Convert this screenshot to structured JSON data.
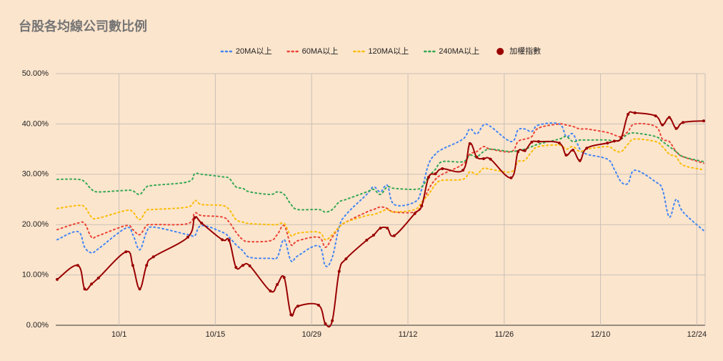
{
  "chart_data": {
    "type": "line",
    "title": "台股各均線公司數比例",
    "legend": "top",
    "grid": true,
    "x": [
      "9/22",
      "9/25",
      "9/26",
      "9/27",
      "9/28",
      "10/2",
      "10/3",
      "10/4",
      "10/5",
      "10/6",
      "10/11",
      "10/12",
      "10/13",
      "10/16",
      "10/17",
      "10/18",
      "10/19",
      "10/20",
      "10/23",
      "10/24",
      "10/25",
      "10/26",
      "10/27",
      "10/30",
      "10/31",
      "11/1",
      "11/2",
      "11/3",
      "11/6",
      "11/7",
      "11/8",
      "11/9",
      "11/10",
      "11/13",
      "11/14",
      "11/15",
      "11/16",
      "11/17",
      "11/20",
      "11/21",
      "11/22",
      "11/23",
      "11/24",
      "11/27",
      "11/28",
      "11/29",
      "11/30",
      "12/1",
      "12/4",
      "12/5",
      "12/6",
      "12/7",
      "12/8",
      "12/11",
      "12/12",
      "12/13",
      "12/14",
      "12/15",
      "12/18",
      "12/19",
      "12/20",
      "12/21",
      "12/22",
      "12/25"
    ],
    "xlim": [
      "9/22",
      "12/25"
    ],
    "xticks": [
      "10/1",
      "10/15",
      "10/29",
      "11/12",
      "11/26",
      "12/10",
      "12/24"
    ],
    "ylim": [
      0,
      50
    ],
    "yticks": [
      {
        "value": 0,
        "label": "0.00%"
      },
      {
        "value": 10,
        "label": "10.00%"
      },
      {
        "value": 20,
        "label": "20.00%"
      },
      {
        "value": 30,
        "label": "30.00%"
      },
      {
        "value": 40,
        "label": "40.00%"
      },
      {
        "value": 50,
        "label": "50.00%"
      }
    ],
    "series": [
      {
        "name": "20MA以上",
        "color": "#4285f4",
        "line_style": "dotted",
        "values": [
          17.0,
          18.6,
          15.5,
          14.4,
          15.2,
          19.3,
          18.0,
          15.0,
          18.5,
          19.5,
          18.0,
          17.8,
          19.8,
          18.5,
          17.5,
          16.0,
          14.8,
          13.5,
          13.3,
          13.5,
          17.0,
          12.8,
          13.8,
          15.8,
          11.8,
          13.5,
          19.5,
          22.0,
          26.0,
          27.5,
          26.5,
          27.8,
          24.0,
          24.5,
          27.0,
          32.0,
          34.0,
          35.0,
          37.0,
          39.0,
          38.0,
          39.8,
          39.5,
          36.5,
          38.8,
          39.0,
          38.5,
          39.8,
          40.0,
          37.5,
          38.0,
          35.0,
          34.0,
          33.0,
          31.0,
          28.5,
          28.2,
          30.8,
          28.5,
          27.0,
          21.5,
          25.0,
          22.5,
          18.8
        ]
      },
      {
        "name": "60MA以上",
        "color": "#ea4335",
        "line_style": "dotted",
        "values": [
          19.0,
          20.3,
          20.2,
          17.5,
          17.8,
          19.8,
          19.0,
          18.0,
          19.8,
          20.0,
          20.2,
          22.3,
          21.8,
          21.5,
          20.5,
          18.5,
          17.0,
          16.6,
          16.8,
          18.0,
          19.8,
          16.0,
          16.8,
          17.5,
          15.5,
          17.5,
          19.5,
          20.5,
          22.5,
          23.0,
          23.5,
          23.2,
          22.5,
          22.5,
          24.0,
          27.0,
          29.0,
          30.0,
          32.0,
          34.0,
          34.5,
          35.5,
          35.0,
          34.5,
          36.5,
          37.0,
          37.5,
          39.2,
          40.0,
          39.8,
          39.5,
          39.0,
          39.0,
          38.3,
          37.8,
          37.5,
          38.5,
          40.0,
          39.5,
          37.0,
          36.5,
          34.5,
          33.5,
          32.2
        ]
      },
      {
        "name": "120MA以上",
        "color": "#fbbc04",
        "line_style": "dotted",
        "values": [
          23.2,
          23.8,
          23.5,
          21.5,
          21.3,
          22.8,
          22.5,
          21.0,
          22.8,
          23.0,
          23.5,
          24.8,
          24.0,
          23.8,
          23.0,
          21.0,
          20.5,
          20.2,
          20.0,
          20.0,
          20.2,
          17.8,
          18.3,
          18.5,
          17.0,
          18.0,
          19.5,
          20.5,
          21.8,
          22.0,
          22.5,
          23.0,
          22.5,
          23.0,
          24.5,
          26.0,
          28.0,
          28.8,
          29.0,
          30.5,
          30.0,
          31.2,
          31.0,
          30.5,
          32.5,
          32.8,
          34.5,
          35.5,
          35.8,
          35.0,
          35.5,
          34.5,
          35.0,
          35.5,
          34.8,
          34.5,
          36.0,
          37.0,
          36.5,
          35.5,
          34.0,
          33.5,
          31.8,
          30.9
        ]
      },
      {
        "name": "240MA以上",
        "color": "#34a853",
        "line_style": "dotted",
        "values": [
          29.0,
          29.0,
          28.5,
          27.0,
          26.5,
          26.8,
          26.7,
          26.0,
          27.5,
          27.8,
          28.5,
          30.1,
          30.0,
          29.5,
          29.2,
          27.5,
          27.2,
          26.5,
          26.0,
          26.5,
          26.0,
          24.0,
          23.0,
          23.0,
          22.5,
          23.0,
          24.5,
          25.0,
          26.5,
          27.0,
          26.0,
          27.5,
          27.2,
          27.0,
          27.5,
          29.5,
          31.0,
          32.5,
          32.5,
          33.8,
          33.5,
          34.5,
          35.0,
          34.5,
          34.8,
          35.0,
          35.5,
          36.0,
          37.0,
          37.5,
          36.5,
          36.8,
          36.8,
          36.8,
          36.5,
          37.0,
          38.0,
          38.2,
          37.5,
          36.5,
          35.5,
          34.5,
          33.5,
          32.5
        ]
      },
      {
        "name": "加權指數",
        "color": "#990000",
        "line_style": "solid",
        "markers": true,
        "values": [
          9.1,
          11.9,
          7.2,
          8.2,
          9.4,
          14.6,
          11.9,
          7.2,
          11.9,
          13.6,
          17.5,
          21.4,
          20.3,
          17.0,
          16.9,
          11.5,
          11.9,
          11.8,
          6.8,
          8.1,
          9.5,
          2.1,
          3.8,
          4.0,
          0.3,
          0.9,
          10.7,
          13.2,
          16.9,
          17.9,
          19.3,
          19.3,
          17.8,
          22.2,
          23.7,
          29.4,
          30.1,
          31.1,
          30.8,
          36.1,
          33.4,
          33.1,
          33.0,
          29.3,
          34.5,
          34.7,
          36.4,
          36.5,
          36.2,
          33.8,
          34.8,
          32.7,
          35.2,
          36.2,
          36.6,
          37.2,
          41.9,
          42.2,
          41.6,
          39.8,
          41.3,
          39.1,
          40.3,
          40.6
        ]
      }
    ]
  }
}
